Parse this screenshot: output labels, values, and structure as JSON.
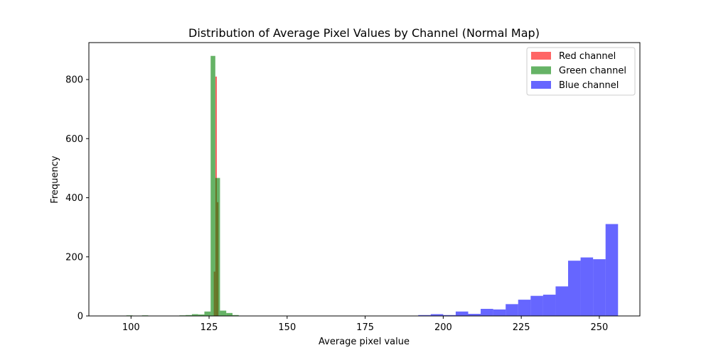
{
  "chart_data": {
    "type": "bar",
    "title": "Distribution of Average Pixel Values by Channel (Normal Map)",
    "xlabel": "Average pixel value",
    "ylabel": "Frequency",
    "xlim": [
      86.5,
      263
    ],
    "ylim": [
      0,
      925
    ],
    "xticks": [
      100,
      125,
      150,
      175,
      200,
      225,
      250
    ],
    "yticks": [
      0,
      200,
      400,
      600,
      800
    ],
    "grid": false,
    "legend_position": "top-right",
    "series": [
      {
        "name": "Red channel",
        "color": "#ff0000",
        "opacity": 0.6,
        "bins": [
          {
            "x0": 126.5,
            "x1": 127.0,
            "value": 150
          },
          {
            "x0": 127.0,
            "x1": 127.5,
            "value": 810
          },
          {
            "x0": 127.5,
            "x1": 128.0,
            "value": 385
          }
        ]
      },
      {
        "name": "Green channel",
        "color": "#008000",
        "opacity": 0.6,
        "bins": [
          {
            "x0": 98.5,
            "x1": 100.5,
            "value": 2
          },
          {
            "x0": 101.5,
            "x1": 103.5,
            "value": 1
          },
          {
            "x0": 103.5,
            "x1": 105.5,
            "value": 2
          },
          {
            "x0": 115.5,
            "x1": 117.5,
            "value": 2
          },
          {
            "x0": 117.5,
            "x1": 119.5,
            "value": 3
          },
          {
            "x0": 119.5,
            "x1": 121.5,
            "value": 6
          },
          {
            "x0": 121.5,
            "x1": 123.5,
            "value": 5
          },
          {
            "x0": 123.5,
            "x1": 125.5,
            "value": 15
          },
          {
            "x0": 125.5,
            "x1": 127.0,
            "value": 880
          },
          {
            "x0": 127.0,
            "x1": 128.5,
            "value": 467
          },
          {
            "x0": 128.5,
            "x1": 130.5,
            "value": 18
          },
          {
            "x0": 130.5,
            "x1": 132.5,
            "value": 10
          },
          {
            "x0": 132.5,
            "x1": 134.5,
            "value": 3
          }
        ]
      },
      {
        "name": "Blue channel",
        "color": "#0000ff",
        "opacity": 0.6,
        "bins": [
          {
            "x0": 166.0,
            "x1": 170.0,
            "value": 1
          },
          {
            "x0": 180.0,
            "x1": 184.0,
            "value": 1
          },
          {
            "x0": 184.0,
            "x1": 188.0,
            "value": 1
          },
          {
            "x0": 188.0,
            "x1": 192.0,
            "value": 1
          },
          {
            "x0": 192.0,
            "x1": 196.0,
            "value": 3
          },
          {
            "x0": 196.0,
            "x1": 200.0,
            "value": 6
          },
          {
            "x0": 200.0,
            "x1": 204.0,
            "value": 3
          },
          {
            "x0": 204.0,
            "x1": 208.0,
            "value": 15
          },
          {
            "x0": 208.0,
            "x1": 212.0,
            "value": 7
          },
          {
            "x0": 212.0,
            "x1": 216.0,
            "value": 24
          },
          {
            "x0": 216.0,
            "x1": 220.0,
            "value": 22
          },
          {
            "x0": 220.0,
            "x1": 224.0,
            "value": 40
          },
          {
            "x0": 224.0,
            "x1": 228.0,
            "value": 55
          },
          {
            "x0": 228.0,
            "x1": 232.0,
            "value": 68
          },
          {
            "x0": 232.0,
            "x1": 236.0,
            "value": 72
          },
          {
            "x0": 236.0,
            "x1": 240.0,
            "value": 100
          },
          {
            "x0": 240.0,
            "x1": 244.0,
            "value": 187
          },
          {
            "x0": 244.0,
            "x1": 248.0,
            "value": 198
          },
          {
            "x0": 248.0,
            "x1": 252.0,
            "value": 192
          },
          {
            "x0": 252.0,
            "x1": 256.0,
            "value": 311
          }
        ]
      }
    ]
  }
}
